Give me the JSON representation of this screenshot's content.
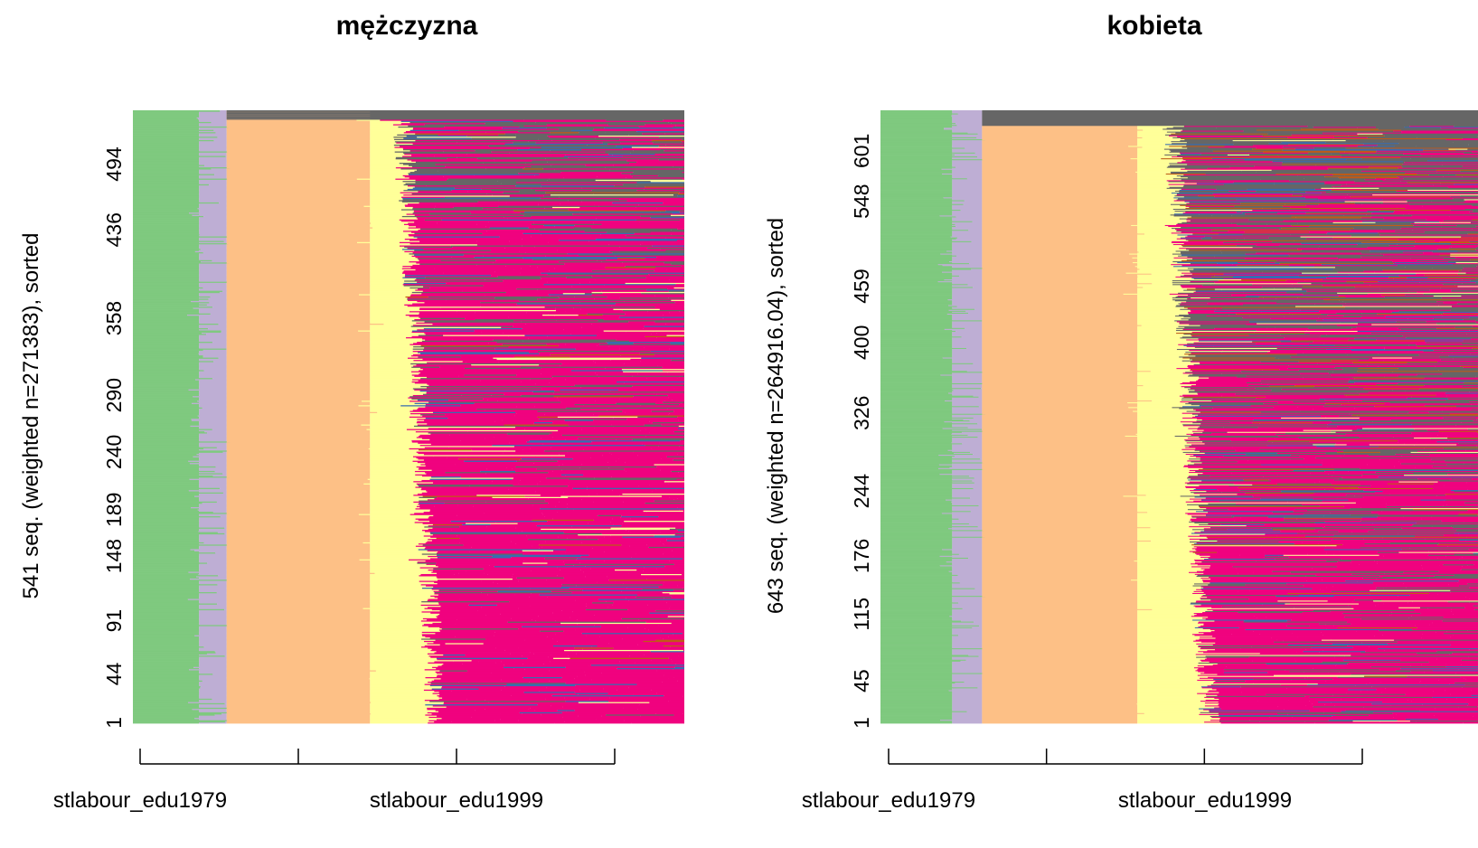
{
  "chart_data": [
    {
      "type": "heatmap",
      "subtype": "sequence index plot",
      "title": "mężczyzna",
      "ylabel": "541 seq. (weighted n=271383), sorted",
      "n_sequences": 541,
      "ytick_labels": [
        "1",
        "44",
        "91",
        "148",
        "189",
        "240",
        "290",
        "358",
        "436",
        "494"
      ],
      "xtick_labels": [
        "stlabour_edu1979",
        "stlabour_edu1999"
      ],
      "x_ticks_total": 4,
      "grid": false,
      "approx_state_boundaries": {
        "green_end": 0.12,
        "lavender_end": 0.17,
        "peach_end": 0.43,
        "yellow_end": 0.52,
        "notes": "later columns mostly magenta with grey, blue, brown and yellow spells; top rows dominated by grey"
      }
    },
    {
      "type": "heatmap",
      "subtype": "sequence index plot",
      "title": "kobieta",
      "ylabel": "643 seq. (weighted n=264916.04), sorted",
      "n_sequences": 643,
      "ytick_labels": [
        "1",
        "45",
        "115",
        "176",
        "244",
        "326",
        "400",
        "459",
        "548",
        "601"
      ],
      "xtick_labels": [
        "stlabour_edu1979",
        "stlabour_edu1999"
      ],
      "x_ticks_total": 4,
      "grid": false,
      "approx_state_boundaries": {
        "green_end": 0.12,
        "lavender_end": 0.17,
        "peach_end": 0.43,
        "yellow_end": 0.52,
        "notes": "later columns mostly magenta; upper half much more grey and brown than the male panel"
      }
    }
  ],
  "palette": {
    "green": "#7fc97f",
    "lavender": "#beaed4",
    "peach": "#fdc086",
    "yellow": "#ffff99",
    "blue": "#386cb0",
    "magenta": "#f0027f",
    "brown": "#bf5b17",
    "grey": "#666666"
  }
}
